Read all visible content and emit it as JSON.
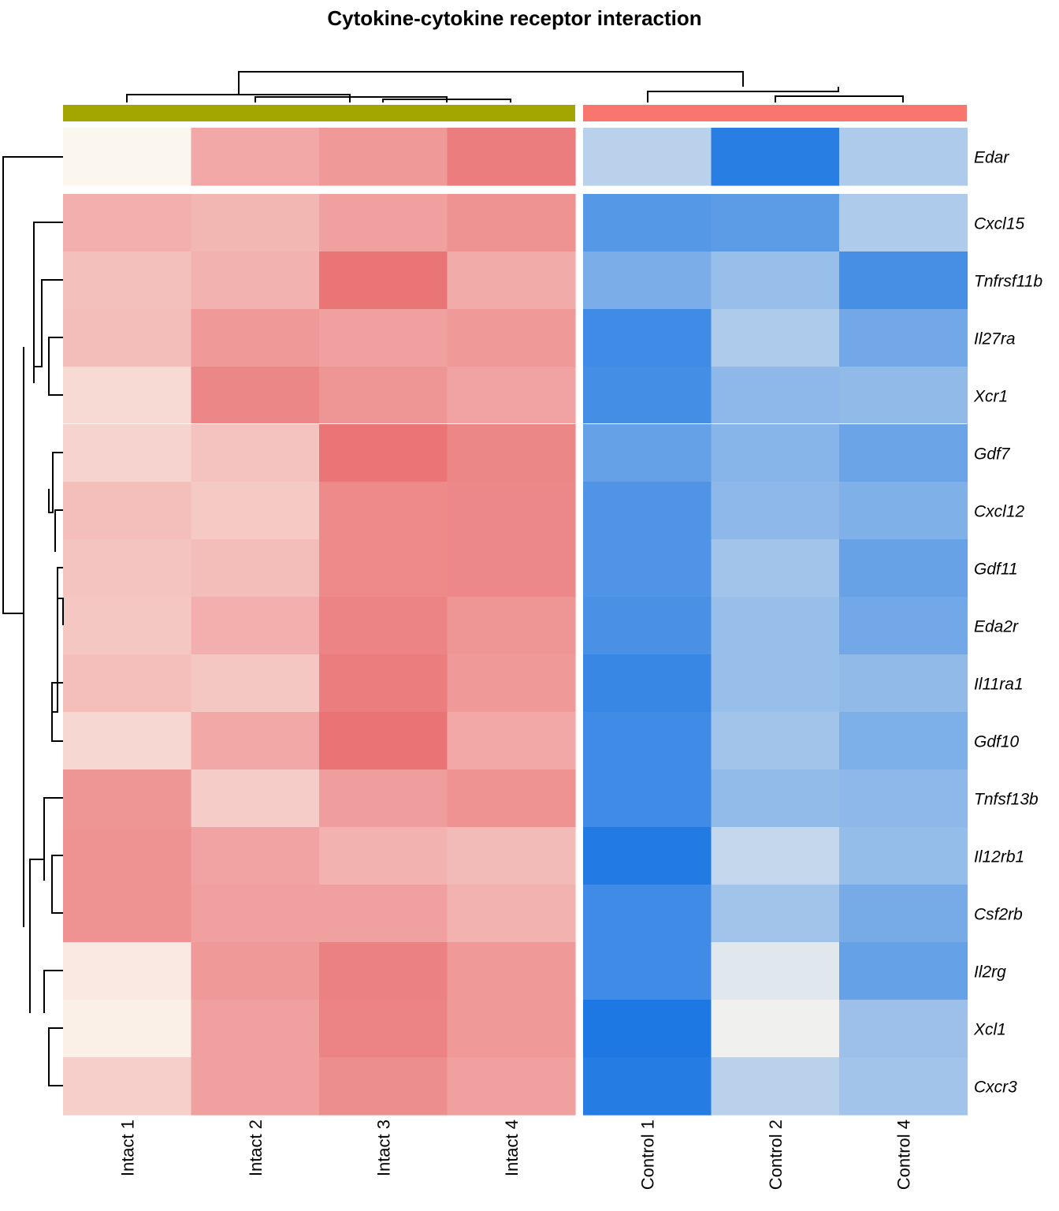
{
  "chart_data": {
    "type": "heatmap",
    "title": "Cytokine-cytokine receptor interaction",
    "columns": [
      "Intact 1",
      "Intact 2",
      "Intact 3",
      "Intact 4",
      "Control 1",
      "Control 2",
      "Control 4"
    ],
    "rows": [
      "Edar",
      "Cxcl15",
      "Tnfrsf11b",
      "Il27ra",
      "Xcr1",
      "Gdf7",
      "Cxcl12",
      "Gdf11",
      "Eda2r",
      "Il11ra1",
      "Gdf10",
      "Tnfsf13b",
      "Il12rb1",
      "Csf2rb",
      "Il2rg",
      "Xcl1",
      "Cxcr3"
    ],
    "groups": [
      {
        "name": "Intact",
        "color": "#A3A500",
        "columns": [
          "Intact 1",
          "Intact 2",
          "Intact 3",
          "Intact 4"
        ]
      },
      {
        "name": "Control",
        "color": "#F8766D",
        "columns": [
          "Control 1",
          "Control 2",
          "Control 4"
        ]
      }
    ],
    "colors": {
      "high": "#E8676A",
      "mid": "#FBF7EF",
      "low": "#1E78E3"
    },
    "value_range": [
      -1,
      1
    ],
    "values": [
      [
        0.0,
        0.55,
        0.65,
        0.85,
        -0.3,
        -0.95,
        -0.35
      ],
      [
        0.5,
        0.45,
        0.6,
        0.7,
        -0.75,
        -0.72,
        -0.35
      ],
      [
        0.38,
        0.47,
        0.9,
        0.52,
        -0.58,
        -0.45,
        -0.82
      ],
      [
        0.4,
        0.65,
        0.6,
        0.65,
        -0.85,
        -0.35,
        -0.62
      ],
      [
        0.2,
        0.78,
        0.68,
        0.58,
        -0.83,
        -0.5,
        -0.48
      ],
      [
        0.25,
        0.36,
        0.9,
        0.78,
        -0.68,
        -0.52,
        -0.65
      ],
      [
        0.39,
        0.32,
        0.75,
        0.77,
        -0.78,
        -0.5,
        -0.56
      ],
      [
        0.35,
        0.4,
        0.75,
        0.77,
        -0.78,
        -0.4,
        -0.67
      ],
      [
        0.33,
        0.5,
        0.8,
        0.68,
        -0.8,
        -0.45,
        -0.62
      ],
      [
        0.39,
        0.33,
        0.85,
        0.65,
        -0.88,
        -0.45,
        -0.48
      ],
      [
        0.22,
        0.55,
        0.92,
        0.55,
        -0.85,
        -0.4,
        -0.57
      ],
      [
        0.68,
        0.3,
        0.62,
        0.7,
        -0.85,
        -0.47,
        -0.5
      ],
      [
        0.7,
        0.58,
        0.47,
        0.42,
        -0.98,
        -0.25,
        -0.46
      ],
      [
        0.7,
        0.6,
        0.6,
        0.47,
        -0.85,
        -0.4,
        -0.6
      ],
      [
        0.1,
        0.65,
        0.82,
        0.65,
        -0.85,
        -0.12,
        -0.68
      ],
      [
        0.05,
        0.6,
        0.8,
        0.65,
        -1.0,
        -0.05,
        -0.43
      ],
      [
        0.28,
        0.6,
        0.73,
        0.6,
        -0.97,
        -0.3,
        -0.4
      ]
    ]
  }
}
